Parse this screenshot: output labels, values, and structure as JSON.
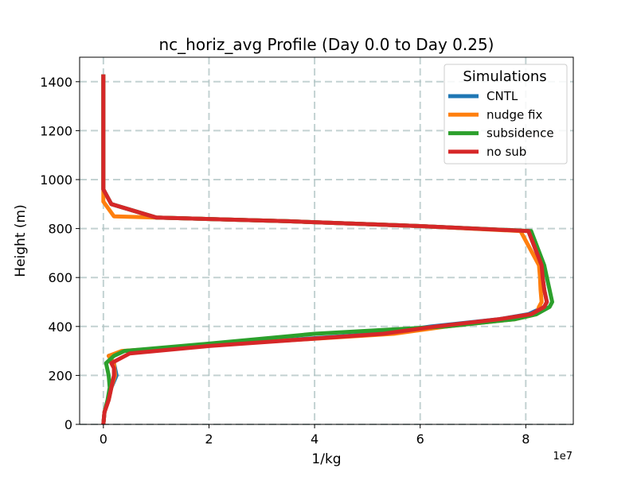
{
  "chart_data": {
    "type": "line",
    "title": "nc_horiz_avg Profile (Day 0.0 to Day 0.25)",
    "xlabel": "1/kg",
    "ylabel": "Height (m)",
    "x_offset_label": "1e7",
    "xlim": [
      -0.45,
      8.9
    ],
    "ylim": [
      0,
      1500
    ],
    "x_ticks": [
      0,
      2,
      4,
      6,
      8
    ],
    "y_ticks": [
      0,
      200,
      400,
      600,
      800,
      1000,
      1200,
      1400
    ],
    "x_tick_labels": [
      "0",
      "2",
      "4",
      "6",
      "8"
    ],
    "y_tick_labels": [
      "0",
      "200",
      "400",
      "600",
      "800",
      "1000",
      "1200",
      "1400"
    ],
    "grid": true,
    "legend": {
      "title": "Simulations",
      "placement": "top-right"
    },
    "colors": {
      "CNTL": "#1f77b4",
      "nudge fix": "#ff7f0e",
      "subsidence": "#2ca02c",
      "no sub": "#d62728"
    },
    "series": [
      {
        "name": "CNTL",
        "x": [
          0,
          0.02,
          0.1,
          0.15,
          0.25,
          0.2,
          0.1,
          0.4,
          2.5,
          5.2,
          6.2,
          7.5,
          8.05,
          8.35,
          8.4,
          8.35,
          8.32,
          8.3,
          8.05,
          6.0,
          3.5,
          1.0,
          0.15,
          0,
          0,
          0,
          0
        ],
        "y": [
          0,
          50,
          100,
          150,
          200,
          250,
          280,
          300,
          330,
          370,
          400,
          430,
          450,
          480,
          500,
          550,
          600,
          650,
          790,
          810,
          830,
          845,
          900,
          960,
          1000,
          1200,
          1430
        ]
      },
      {
        "name": "nudge fix",
        "x": [
          0,
          0.02,
          0.1,
          0.15,
          0.22,
          0.2,
          0.1,
          0.35,
          2.5,
          5.5,
          6.5,
          7.8,
          8.2,
          8.25,
          8.3,
          8.28,
          8.27,
          8.25,
          7.9,
          6.0,
          3.5,
          1.0,
          0.2,
          0,
          0,
          0,
          0
        ],
        "y": [
          0,
          50,
          100,
          150,
          200,
          250,
          280,
          300,
          330,
          370,
          400,
          430,
          450,
          480,
          500,
          550,
          600,
          650,
          790,
          810,
          830,
          845,
          850,
          910,
          960,
          1200,
          1430
        ]
      },
      {
        "name": "subsidence",
        "x": [
          0,
          0.02,
          0.08,
          0.12,
          0.1,
          0.05,
          0.2,
          0.4,
          2.0,
          4.0,
          6.5,
          7.8,
          8.2,
          8.45,
          8.5,
          8.45,
          8.4,
          8.35,
          8.1,
          6.0,
          3.5,
          1.0,
          0.15,
          0,
          0,
          0,
          0
        ],
        "y": [
          0,
          50,
          100,
          150,
          200,
          250,
          280,
          300,
          330,
          370,
          400,
          430,
          450,
          480,
          500,
          550,
          600,
          650,
          790,
          810,
          830,
          845,
          900,
          960,
          1000,
          1200,
          1430
        ]
      },
      {
        "name": "no sub",
        "x": [
          0,
          0.02,
          0.1,
          0.15,
          0.2,
          0.2,
          0.15,
          0.5,
          2.0,
          5.3,
          6.3,
          7.5,
          8.1,
          8.35,
          8.4,
          8.35,
          8.32,
          8.3,
          8.05,
          6.0,
          3.5,
          1.0,
          0.15,
          0,
          0,
          0,
          0
        ],
        "y": [
          0,
          50,
          100,
          150,
          200,
          230,
          250,
          290,
          320,
          370,
          400,
          430,
          450,
          480,
          500,
          550,
          600,
          650,
          790,
          810,
          830,
          845,
          900,
          960,
          1000,
          1200,
          1430
        ]
      }
    ]
  }
}
